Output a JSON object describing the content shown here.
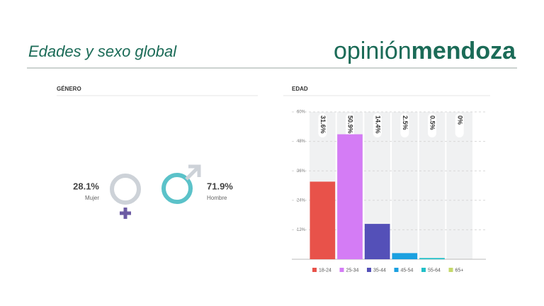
{
  "header": {
    "title": "Edades y sexo global",
    "brand_light": "opinión",
    "brand_bold": "mendoza"
  },
  "gender": {
    "heading": "GÉNERO",
    "female": {
      "percent": "28.1%",
      "label": "Mujer"
    },
    "male": {
      "percent": "71.9%",
      "label": "Hombre"
    }
  },
  "chart_data": {
    "type": "bar",
    "title": "EDAD",
    "categories": [
      "18-24",
      "25-34",
      "35-44",
      "45-54",
      "55-64",
      "65+"
    ],
    "values": [
      31.6,
      50.9,
      14.4,
      2.5,
      0.5,
      0
    ],
    "value_labels": [
      "31.6%",
      "50.9%",
      "14.4%",
      "2.5%",
      "0.5%",
      "0%"
    ],
    "colors": [
      "#e8524a",
      "#d47cf5",
      "#5450b8",
      "#1ba0e0",
      "#22c0c8",
      "#c5d96a"
    ],
    "ylim": [
      0,
      60
    ],
    "yticks": [
      {
        "value": 12,
        "label": "12%"
      },
      {
        "value": 24,
        "label": "24%"
      },
      {
        "value": 36,
        "label": "36%"
      },
      {
        "value": 48,
        "label": "48%"
      },
      {
        "value": 60,
        "label": "60%"
      }
    ],
    "grid": true
  }
}
